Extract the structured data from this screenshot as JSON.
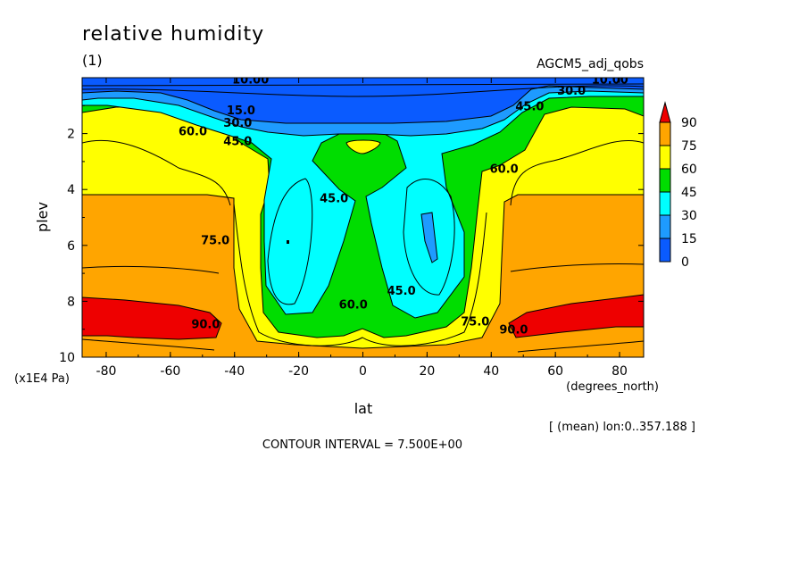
{
  "header": {
    "title": "relative humidity",
    "panel_label": "(1)",
    "dataset": "AGCM5_adj_qobs"
  },
  "footer": {
    "mean_note": "[ (mean) lon:0..357.188 ]",
    "contour_interval": "CONTOUR INTERVAL = 7.500E+00"
  },
  "colors": {
    "lt15": "#0a5bff",
    "15to30": "#1e9bff",
    "30to45": "#00ffff",
    "45to60": "#00dd00",
    "60to75": "#ffff00",
    "75to90": "#ffa500",
    "gt90": "#ee0000"
  },
  "chart_data": {
    "type": "contour",
    "title": "relative humidity",
    "xlabel": "lat",
    "xunit": "(degrees_north)",
    "ylabel": "plev",
    "yunit": "(x1E4 Pa)",
    "xlim": [
      -87.5,
      87.5
    ],
    "ylim": [
      10,
      0
    ],
    "xticks": [
      -80,
      -60,
      -40,
      -20,
      0,
      20,
      40,
      60,
      80
    ],
    "yticks": [
      2,
      4,
      6,
      8,
      10
    ],
    "levels": [
      0,
      15,
      30,
      45,
      60,
      75,
      90
    ],
    "contour_interval": 7.5,
    "colorbar": {
      "labels": [
        "90",
        "75",
        "60",
        "45",
        "30",
        "15",
        "0"
      ]
    },
    "contour_labels": [
      {
        "text": "10.00",
        "lat": -35,
        "plev": 0.05
      },
      {
        "text": "10.00",
        "lat": 77,
        "plev": 0.05
      },
      {
        "text": "15.0",
        "lat": -38,
        "plev": 1.15
      },
      {
        "text": "30.0",
        "lat": -39,
        "plev": 1.6
      },
      {
        "text": "30.0",
        "lat": 65,
        "plev": 0.45
      },
      {
        "text": "45.0",
        "lat": -39,
        "plev": 2.25
      },
      {
        "text": "45.0",
        "lat": 52,
        "plev": 1.0
      },
      {
        "text": "45.0",
        "lat": -9,
        "plev": 4.3
      },
      {
        "text": "45.0",
        "lat": 12,
        "plev": 7.6
      },
      {
        "text": "60.0",
        "lat": -53,
        "plev": 1.9
      },
      {
        "text": "60.0",
        "lat": 44,
        "plev": 3.25
      },
      {
        "text": "60.0",
        "lat": -3,
        "plev": 8.1
      },
      {
        "text": "75.0",
        "lat": -46,
        "plev": 5.8
      },
      {
        "text": "75.0",
        "lat": 35,
        "plev": 8.7
      },
      {
        "text": "90.0",
        "lat": -49,
        "plev": 8.8
      },
      {
        "text": "90.0",
        "lat": 47,
        "plev": 9.0
      }
    ]
  }
}
